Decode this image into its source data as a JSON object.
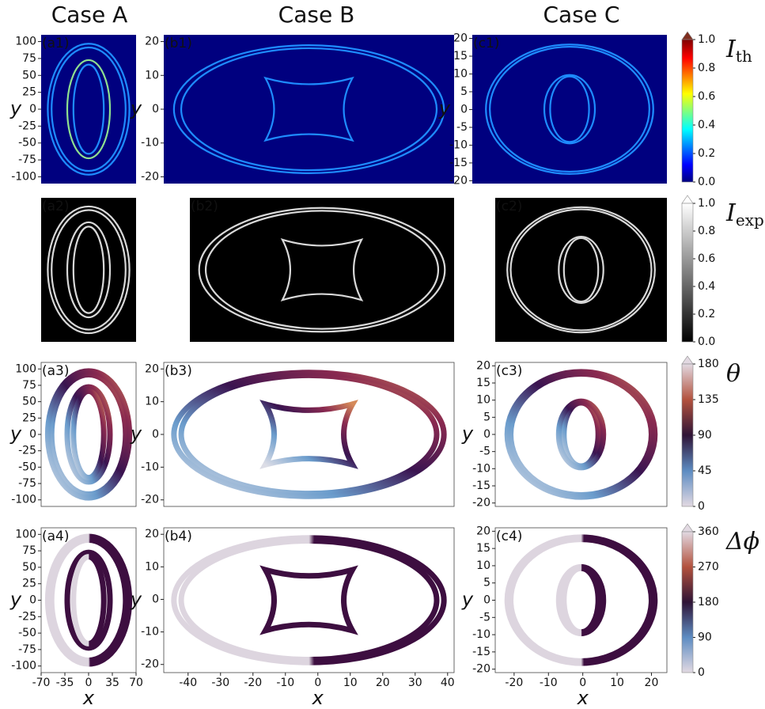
{
  "columns": [
    "Case A",
    "Case B",
    "Case C"
  ],
  "panels": [
    [
      {
        "label": "(a1)",
        "ylabel": "y",
        "xlim": [
          -70,
          70
        ],
        "ylim": [
          -110,
          110
        ],
        "yticks": [
          100,
          75,
          50,
          25,
          0,
          -25,
          -50,
          -75,
          -100
        ]
      },
      {
        "label": "(b1)",
        "ylabel": "y",
        "xlim": [
          -47.5,
          42
        ],
        "ylim": [
          -22,
          22
        ],
        "yticks": [
          20,
          10,
          0,
          -10,
          -20
        ]
      },
      {
        "label": "(c1)",
        "ylabel": "y",
        "xlim": [
          -32,
          25
        ],
        "ylim": [
          -20.8,
          21
        ],
        "yticks": [
          20,
          15,
          10,
          5,
          0,
          -5,
          -10,
          -15,
          -20
        ]
      }
    ],
    [
      {
        "label": "(a2)"
      },
      {
        "label": "(b2)"
      },
      {
        "label": "(c2)"
      }
    ],
    [
      {
        "label": "(a3)",
        "ylabel": "y",
        "xlim": [
          -70,
          70
        ],
        "ylim": [
          -110,
          110
        ],
        "yticks": [
          100,
          75,
          50,
          25,
          0,
          -25,
          -50,
          -75,
          -100
        ]
      },
      {
        "label": "(b3)",
        "ylabel": "y",
        "xlim": [
          -47.5,
          42
        ],
        "ylim": [
          -22,
          22
        ],
        "yticks": [
          20,
          10,
          0,
          -10,
          -20
        ]
      },
      {
        "label": "(c3)",
        "ylabel": "y",
        "xlim": [
          -25.5,
          24.5
        ],
        "ylim": [
          -21,
          21
        ],
        "yticks": [
          20,
          15,
          10,
          5,
          0,
          -5,
          -10,
          -15,
          -20
        ]
      }
    ],
    [
      {
        "label": "(a4)",
        "ylabel": "y",
        "xlabel": "x",
        "xlim": [
          -70,
          70
        ],
        "ylim": [
          -110,
          110
        ],
        "yticks": [
          100,
          75,
          50,
          25,
          0,
          -25,
          -50,
          -75,
          -100
        ],
        "xticks": [
          -70,
          -35,
          0,
          35,
          70
        ]
      },
      {
        "label": "(b4)",
        "ylabel": "y",
        "xlabel": "x",
        "xlim": [
          -47.5,
          42
        ],
        "ylim": [
          -22.5,
          22
        ],
        "yticks": [
          20,
          10,
          0,
          -10,
          -20
        ],
        "xticks": [
          -40,
          -30,
          -20,
          -10,
          0,
          10,
          20,
          30,
          40
        ]
      },
      {
        "label": "(c4)",
        "ylabel": "y",
        "xlabel": "x",
        "xlim": [
          -25.5,
          24.5
        ],
        "ylim": [
          -21,
          21
        ],
        "yticks": [
          20,
          15,
          10,
          5,
          0,
          -5,
          -10,
          -15,
          -20
        ],
        "xticks": [
          -20,
          -10,
          0,
          10,
          20
        ]
      }
    ]
  ],
  "colorbars": [
    {
      "symbol": "I",
      "subscript": "th",
      "colormap": "jet",
      "lim": [
        0,
        1
      ],
      "ticks": [
        {
          "value": 0,
          "label": "0.0"
        },
        0.2,
        0.4,
        0.6,
        0.8,
        {
          "value": 1,
          "label": "1.0"
        }
      ]
    },
    {
      "symbol": "I",
      "subscript": "exp",
      "colormap": "gray",
      "lim": [
        0,
        1
      ],
      "ticks": [
        {
          "value": 0,
          "label": "0.0"
        },
        0.2,
        0.4,
        0.6,
        0.8,
        {
          "value": 1,
          "label": "1.0"
        }
      ]
    },
    {
      "symbol": "θ",
      "colormap": "twilight",
      "lim": [
        0,
        180
      ],
      "ticks": [
        0,
        45,
        90,
        135,
        180
      ]
    },
    {
      "symbol": "Δϕ",
      "colormap": "twilight",
      "lim": [
        0,
        360
      ],
      "ticks": [
        0,
        90,
        180,
        270,
        360
      ]
    }
  ]
}
